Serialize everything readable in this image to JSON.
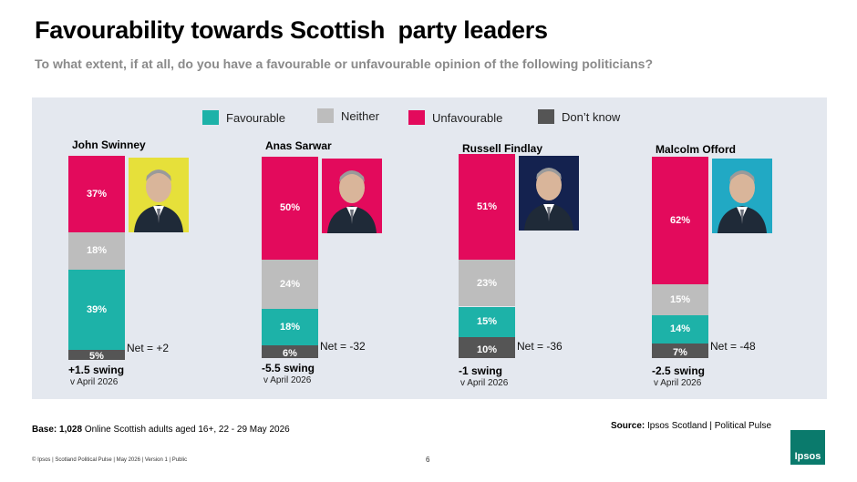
{
  "title": "Favourability towards Scottish  party leaders",
  "subtitle": "To what extent, if at all, do you have a favourable or unfavourable opinion of the following politicians?",
  "colors": {
    "favourable": "#1db2a8",
    "neither": "#bdbdbd",
    "unfavourable": "#e30a5c",
    "dont_know": "#555555",
    "panel": "#e4e8ef"
  },
  "chart_data": {
    "type": "bar",
    "stacked": true,
    "categories": [
      "John Swinney",
      "Anas Sarwar",
      "Russell Findlay",
      "Malcolm Offord"
    ],
    "series": [
      {
        "name": "Favourable",
        "values": [
          39,
          18,
          15,
          14
        ]
      },
      {
        "name": "Neither",
        "values": [
          18,
          24,
          23,
          15
        ]
      },
      {
        "name": "Unfavourable",
        "values": [
          37,
          50,
          51,
          62
        ]
      },
      {
        "name": "Don’t know",
        "values": [
          5,
          6,
          10,
          7
        ]
      }
    ],
    "legend_position": "top",
    "ylim": [
      0,
      100
    ]
  },
  "legend": [
    {
      "label": "Favourable",
      "color_key": "favourable"
    },
    {
      "label": "Neither",
      "color_key": "neither"
    },
    {
      "label": "Unfavourable",
      "color_key": "unfavourable"
    },
    {
      "label": "Don’t know",
      "color_key": "dont_know"
    }
  ],
  "leaders": [
    {
      "name": "John Swinney",
      "net": "Net = +2",
      "swing": "+1.5 swing",
      "vs": "v April 2026",
      "labels": {
        "favourable": "39%",
        "neither": "18%",
        "unfavourable": "37%",
        "dont_know": "5%"
      },
      "photo_bg": "#e6e03a"
    },
    {
      "name": "Anas Sarwar",
      "net": "Net = -32",
      "swing": "-5.5 swing",
      "vs": "v April 2026",
      "labels": {
        "favourable": "18%",
        "neither": "24%",
        "unfavourable": "50%",
        "dont_know": "6%"
      },
      "photo_bg": "#e30a5c"
    },
    {
      "name": "Russell Findlay",
      "net": "Net = -36",
      "swing": "-1 swing",
      "vs": "v April 2026",
      "labels": {
        "favourable": "15%",
        "neither": "23%",
        "unfavourable": "51%",
        "dont_know": "10%"
      },
      "photo_bg": "#14224f"
    },
    {
      "name": "Malcolm Offord",
      "net": "Net = -48",
      "swing": "-2.5 swing",
      "vs": "v April 2026",
      "labels": {
        "favourable": "14%",
        "neither": "15%",
        "unfavourable": "62%",
        "dont_know": "7%"
      },
      "photo_bg": "#21a9c4"
    }
  ],
  "base_label": "Base:",
  "base_count": "1,028",
  "base_text": " Online Scottish adults aged 16+, 22 - 29 May 2026",
  "source_label": "Source:",
  "source_text": " Ipsos Scotland | Political Pulse",
  "footer": "© Ipsos | Scotland Political Pulse | May 2026 | Version 1 | Public",
  "page_number": "6",
  "logo_text": "Ipsos"
}
